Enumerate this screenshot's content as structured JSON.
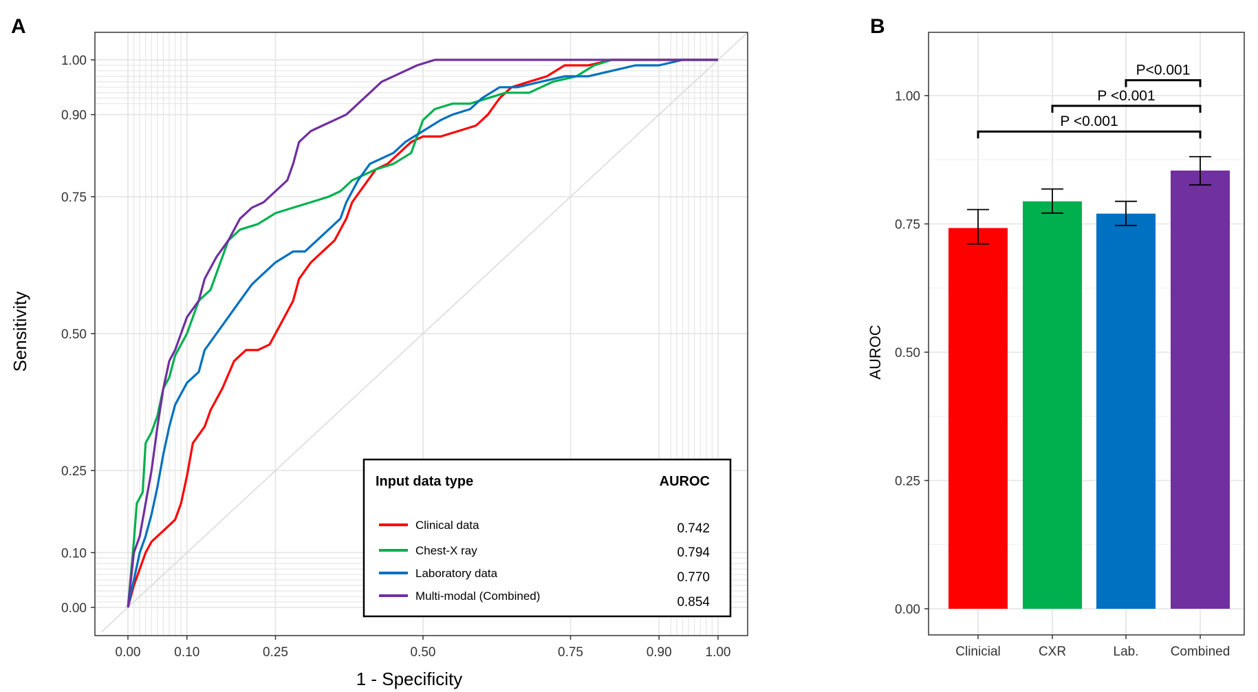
{
  "colors": {
    "clinical": "#fe0000",
    "cxr": "#00b04f",
    "lab": "#0070c0",
    "combined": "#7030a0",
    "grid": "#e6e6e6",
    "diagonal": "#d9d9d9"
  },
  "chart_data": [
    {
      "panel": "A",
      "type": "line",
      "title": "",
      "xlabel": "1 - Specificity",
      "ylabel": "Sensitivity",
      "xlim": [
        0,
        1
      ],
      "ylim": [
        0,
        1
      ],
      "x_ticks": [
        0.0,
        0.1,
        0.25,
        0.5,
        0.75,
        0.9,
        1.0
      ],
      "x_tick_labels": [
        "0.00",
        "0.10",
        "0.25",
        "0.50",
        "0.75",
        "0.90",
        "1.00"
      ],
      "y_ticks": [
        0.0,
        0.1,
        0.25,
        0.5,
        0.75,
        0.9,
        1.0
      ],
      "y_tick_labels": [
        "0.00",
        "0.10",
        "0.25",
        "0.50",
        "0.75",
        "0.90",
        "1.00"
      ],
      "reference_line": "diagonal",
      "legend": {
        "title": "Input data type",
        "value_header": "AUROC",
        "position": "bottom-right",
        "entries": [
          {
            "label": "Clinical data",
            "value": "0.742",
            "series": "clinical"
          },
          {
            "label": "Chest-X ray",
            "value": "0.794",
            "series": "cxr"
          },
          {
            "label": "Laboratory data",
            "value": "0.770",
            "series": "lab"
          },
          {
            "label": "Multi-modal  (Combined)",
            "value": "0.854",
            "series": "combined"
          }
        ]
      },
      "series": [
        {
          "name": "Clinical data",
          "key": "clinical",
          "points": [
            [
              0,
              0
            ],
            [
              0.01,
              0.04
            ],
            [
              0.02,
              0.07
            ],
            [
              0.03,
              0.1
            ],
            [
              0.04,
              0.12
            ],
            [
              0.06,
              0.14
            ],
            [
              0.08,
              0.16
            ],
            [
              0.09,
              0.19
            ],
            [
              0.1,
              0.24
            ],
            [
              0.11,
              0.3
            ],
            [
              0.13,
              0.33
            ],
            [
              0.14,
              0.36
            ],
            [
              0.16,
              0.4
            ],
            [
              0.18,
              0.45
            ],
            [
              0.2,
              0.47
            ],
            [
              0.22,
              0.47
            ],
            [
              0.24,
              0.48
            ],
            [
              0.26,
              0.52
            ],
            [
              0.28,
              0.56
            ],
            [
              0.29,
              0.6
            ],
            [
              0.31,
              0.63
            ],
            [
              0.33,
              0.65
            ],
            [
              0.35,
              0.67
            ],
            [
              0.36,
              0.69
            ],
            [
              0.37,
              0.71
            ],
            [
              0.38,
              0.74
            ],
            [
              0.4,
              0.77
            ],
            [
              0.42,
              0.8
            ],
            [
              0.44,
              0.81
            ],
            [
              0.46,
              0.83
            ],
            [
              0.48,
              0.85
            ],
            [
              0.5,
              0.86
            ],
            [
              0.53,
              0.86
            ],
            [
              0.56,
              0.87
            ],
            [
              0.59,
              0.88
            ],
            [
              0.61,
              0.9
            ],
            [
              0.63,
              0.93
            ],
            [
              0.65,
              0.95
            ],
            [
              0.68,
              0.96
            ],
            [
              0.71,
              0.97
            ],
            [
              0.74,
              0.99
            ],
            [
              0.78,
              0.99
            ],
            [
              0.82,
              1.0
            ],
            [
              0.9,
              1.0
            ],
            [
              1.0,
              1.0
            ]
          ]
        },
        {
          "name": "Chest-X ray",
          "key": "cxr",
          "points": [
            [
              0,
              0
            ],
            [
              0.005,
              0.06
            ],
            [
              0.01,
              0.12
            ],
            [
              0.015,
              0.19
            ],
            [
              0.025,
              0.21
            ],
            [
              0.03,
              0.3
            ],
            [
              0.04,
              0.32
            ],
            [
              0.05,
              0.35
            ],
            [
              0.06,
              0.4
            ],
            [
              0.07,
              0.42
            ],
            [
              0.08,
              0.46
            ],
            [
              0.1,
              0.5
            ],
            [
              0.12,
              0.56
            ],
            [
              0.14,
              0.58
            ],
            [
              0.15,
              0.61
            ],
            [
              0.17,
              0.67
            ],
            [
              0.19,
              0.69
            ],
            [
              0.22,
              0.7
            ],
            [
              0.25,
              0.72
            ],
            [
              0.28,
              0.73
            ],
            [
              0.31,
              0.74
            ],
            [
              0.34,
              0.75
            ],
            [
              0.36,
              0.76
            ],
            [
              0.38,
              0.78
            ],
            [
              0.4,
              0.79
            ],
            [
              0.42,
              0.8
            ],
            [
              0.45,
              0.81
            ],
            [
              0.48,
              0.83
            ],
            [
              0.49,
              0.86
            ],
            [
              0.5,
              0.89
            ],
            [
              0.52,
              0.91
            ],
            [
              0.55,
              0.92
            ],
            [
              0.58,
              0.92
            ],
            [
              0.61,
              0.93
            ],
            [
              0.64,
              0.94
            ],
            [
              0.68,
              0.94
            ],
            [
              0.72,
              0.96
            ],
            [
              0.76,
              0.97
            ],
            [
              0.79,
              0.99
            ],
            [
              0.82,
              1.0
            ],
            [
              0.9,
              1.0
            ],
            [
              1.0,
              1.0
            ]
          ]
        },
        {
          "name": "Laboratory data",
          "key": "lab",
          "points": [
            [
              0,
              0
            ],
            [
              0.01,
              0.05
            ],
            [
              0.02,
              0.1
            ],
            [
              0.03,
              0.13
            ],
            [
              0.04,
              0.17
            ],
            [
              0.05,
              0.22
            ],
            [
              0.06,
              0.28
            ],
            [
              0.07,
              0.33
            ],
            [
              0.08,
              0.37
            ],
            [
              0.1,
              0.41
            ],
            [
              0.12,
              0.43
            ],
            [
              0.13,
              0.47
            ],
            [
              0.15,
              0.5
            ],
            [
              0.17,
              0.53
            ],
            [
              0.19,
              0.56
            ],
            [
              0.21,
              0.59
            ],
            [
              0.23,
              0.61
            ],
            [
              0.25,
              0.63
            ],
            [
              0.28,
              0.65
            ],
            [
              0.3,
              0.65
            ],
            [
              0.32,
              0.67
            ],
            [
              0.34,
              0.69
            ],
            [
              0.36,
              0.71
            ],
            [
              0.37,
              0.74
            ],
            [
              0.39,
              0.78
            ],
            [
              0.41,
              0.81
            ],
            [
              0.43,
              0.82
            ],
            [
              0.45,
              0.83
            ],
            [
              0.47,
              0.85
            ],
            [
              0.5,
              0.87
            ],
            [
              0.53,
              0.89
            ],
            [
              0.55,
              0.9
            ],
            [
              0.58,
              0.91
            ],
            [
              0.6,
              0.93
            ],
            [
              0.63,
              0.95
            ],
            [
              0.66,
              0.95
            ],
            [
              0.7,
              0.96
            ],
            [
              0.74,
              0.97
            ],
            [
              0.78,
              0.97
            ],
            [
              0.82,
              0.98
            ],
            [
              0.86,
              0.99
            ],
            [
              0.9,
              0.99
            ],
            [
              0.94,
              1.0
            ],
            [
              1.0,
              1.0
            ]
          ]
        },
        {
          "name": "Multi-modal (Combined)",
          "key": "combined",
          "points": [
            [
              0,
              0
            ],
            [
              0.005,
              0.05
            ],
            [
              0.01,
              0.1
            ],
            [
              0.02,
              0.13
            ],
            [
              0.03,
              0.19
            ],
            [
              0.04,
              0.25
            ],
            [
              0.05,
              0.33
            ],
            [
              0.06,
              0.4
            ],
            [
              0.07,
              0.45
            ],
            [
              0.08,
              0.47
            ],
            [
              0.09,
              0.5
            ],
            [
              0.1,
              0.53
            ],
            [
              0.12,
              0.56
            ],
            [
              0.13,
              0.6
            ],
            [
              0.15,
              0.64
            ],
            [
              0.17,
              0.67
            ],
            [
              0.19,
              0.71
            ],
            [
              0.21,
              0.73
            ],
            [
              0.23,
              0.74
            ],
            [
              0.25,
              0.76
            ],
            [
              0.27,
              0.78
            ],
            [
              0.28,
              0.81
            ],
            [
              0.29,
              0.85
            ],
            [
              0.31,
              0.87
            ],
            [
              0.33,
              0.88
            ],
            [
              0.35,
              0.89
            ],
            [
              0.37,
              0.9
            ],
            [
              0.39,
              0.92
            ],
            [
              0.41,
              0.94
            ],
            [
              0.43,
              0.96
            ],
            [
              0.45,
              0.97
            ],
            [
              0.47,
              0.98
            ],
            [
              0.49,
              0.99
            ],
            [
              0.52,
              1.0
            ],
            [
              0.6,
              1.0
            ],
            [
              0.8,
              1.0
            ],
            [
              1.0,
              1.0
            ]
          ]
        }
      ]
    },
    {
      "panel": "B",
      "type": "bar",
      "title": "",
      "xlabel": "",
      "ylabel": "AUROC",
      "ylim": [
        0,
        1.1
      ],
      "y_ticks": [
        0.0,
        0.25,
        0.5,
        0.75,
        1.0
      ],
      "y_tick_labels": [
        "0.00",
        "0.25",
        "0.50",
        "0.75",
        "1.00"
      ],
      "categories": [
        "Clinicial",
        "CXR",
        "Lab.",
        "Combined"
      ],
      "series_keys": [
        "clinical",
        "cxr",
        "lab",
        "combined"
      ],
      "values": [
        0.742,
        0.794,
        0.77,
        0.854
      ],
      "error_low": [
        0.711,
        0.771,
        0.747,
        0.826
      ],
      "error_high": [
        0.778,
        0.818,
        0.794,
        0.881
      ],
      "comparisons": [
        {
          "from": "Lab.",
          "to": "Combined",
          "y": 1.03,
          "label": "P<0.001"
        },
        {
          "from": "CXR",
          "to": "Combined",
          "y": 0.98,
          "label": "P <0.001"
        },
        {
          "from": "Clinicial",
          "to": "Combined",
          "y": 0.93,
          "label": "P <0.001"
        }
      ]
    }
  ]
}
